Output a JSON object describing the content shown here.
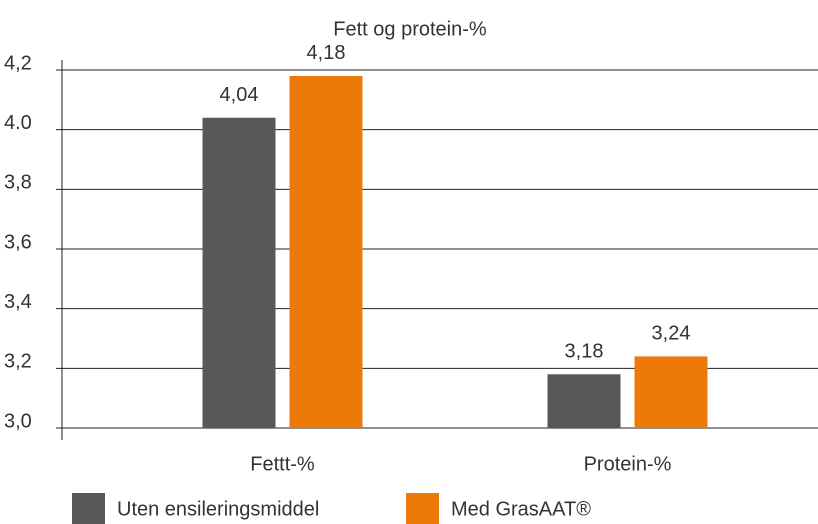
{
  "chart_data": {
    "type": "bar",
    "title": "Fett og protein-%",
    "categories": [
      "Fettt-%",
      "Protein-%"
    ],
    "series": [
      {
        "name": "Uten ensileringsmiddel",
        "color": "#58585a",
        "values": [
          4.04,
          3.18
        ],
        "value_labels": [
          "4,04",
          "3,18"
        ]
      },
      {
        "name": "Med GrasAAT®",
        "color": "#ec7a08",
        "values": [
          4.18,
          3.24
        ],
        "value_labels": [
          "4,18",
          "3,24"
        ]
      }
    ],
    "ylim": [
      3.0,
      4.2
    ],
    "yticks": [
      {
        "value": 3.0,
        "label": "3,0"
      },
      {
        "value": 3.2,
        "label": "3,2"
      },
      {
        "value": 3.4,
        "label": "3,4"
      },
      {
        "value": 3.6,
        "label": "3,6"
      },
      {
        "value": 3.8,
        "label": "3,8"
      },
      {
        "value": 4.0,
        "label": "4.0"
      },
      {
        "value": 4.2,
        "label": "4,2"
      }
    ],
    "grid": true,
    "legend": "bottom"
  }
}
